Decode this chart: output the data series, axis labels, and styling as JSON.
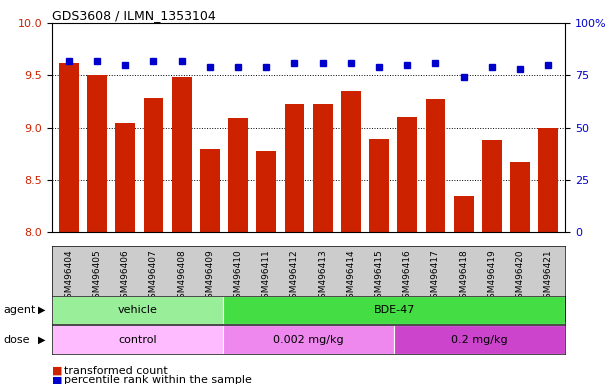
{
  "title": "GDS3608 / ILMN_1353104",
  "samples": [
    "GSM496404",
    "GSM496405",
    "GSM496406",
    "GSM496407",
    "GSM496408",
    "GSM496409",
    "GSM496410",
    "GSM496411",
    "GSM496412",
    "GSM496413",
    "GSM496414",
    "GSM496415",
    "GSM496416",
    "GSM496417",
    "GSM496418",
    "GSM496419",
    "GSM496420",
    "GSM496421"
  ],
  "bar_values": [
    9.62,
    9.5,
    9.04,
    9.28,
    9.48,
    8.8,
    9.09,
    8.78,
    9.23,
    9.23,
    9.35,
    8.89,
    9.1,
    9.27,
    8.35,
    8.88,
    8.67,
    9.0
  ],
  "dot_values": [
    82,
    82,
    80,
    82,
    82,
    79,
    79,
    79,
    81,
    81,
    81,
    79,
    80,
    81,
    74,
    79,
    78,
    80
  ],
  "bar_color": "#cc2200",
  "dot_color": "#0000cc",
  "ylim_left": [
    8.0,
    10.0
  ],
  "ylim_right": [
    0,
    100
  ],
  "yticks_left": [
    8.0,
    8.5,
    9.0,
    9.5,
    10.0
  ],
  "yticks_right": [
    0,
    25,
    50,
    75,
    100
  ],
  "yticklabels_right": [
    "0",
    "25",
    "50",
    "75",
    "100%"
  ],
  "grid_values": [
    8.5,
    9.0,
    9.5
  ],
  "agent_groups": [
    {
      "label": "vehicle",
      "start": 0,
      "end": 5,
      "color": "#99ee99"
    },
    {
      "label": "BDE-47",
      "start": 6,
      "end": 17,
      "color": "#44dd44"
    }
  ],
  "dose_groups": [
    {
      "label": "control",
      "start": 0,
      "end": 5,
      "color": "#ffbbff"
    },
    {
      "label": "0.002 mg/kg",
      "start": 6,
      "end": 11,
      "color": "#ee88ee"
    },
    {
      "label": "0.2 mg/kg",
      "start": 12,
      "end": 17,
      "color": "#cc44cc"
    }
  ],
  "agent_label": "agent",
  "dose_label": "dose",
  "legend_bar_label": "transformed count",
  "legend_dot_label": "percentile rank within the sample",
  "bg_color": "#ffffff",
  "tick_area_bg": "#cccccc"
}
